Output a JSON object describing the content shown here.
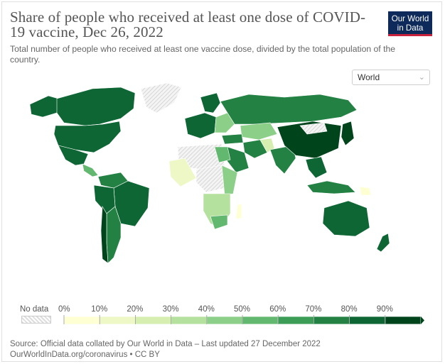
{
  "header": {
    "title": "Share of people who received at least one dose of COVID-19 vaccine, Dec 26, 2022",
    "subtitle": "Total number of people who received at least one vaccine dose, divided by the total population of the country."
  },
  "logo": {
    "line1": "Our World",
    "line2": "in Data"
  },
  "region_select": {
    "value": "World",
    "icon": "chevron-down-icon"
  },
  "legend": {
    "no_data_label": "No data",
    "ticks": [
      "0%",
      "10%",
      "20%",
      "30%",
      "40%",
      "50%",
      "60%",
      "70%",
      "80%",
      "90%"
    ],
    "bin_colors": [
      "#ffffd4",
      "#edf8c6",
      "#d6efb1",
      "#b4e19d",
      "#8ccf88",
      "#63b86f",
      "#3c9d57",
      "#238243",
      "#0d6634",
      "#00441b"
    ]
  },
  "footer": {
    "source": "Source: Official data collated by Our World in Data – Last updated 27 December 2022",
    "license": "OurWorldInData.org/coronavirus • CC BY"
  }
}
